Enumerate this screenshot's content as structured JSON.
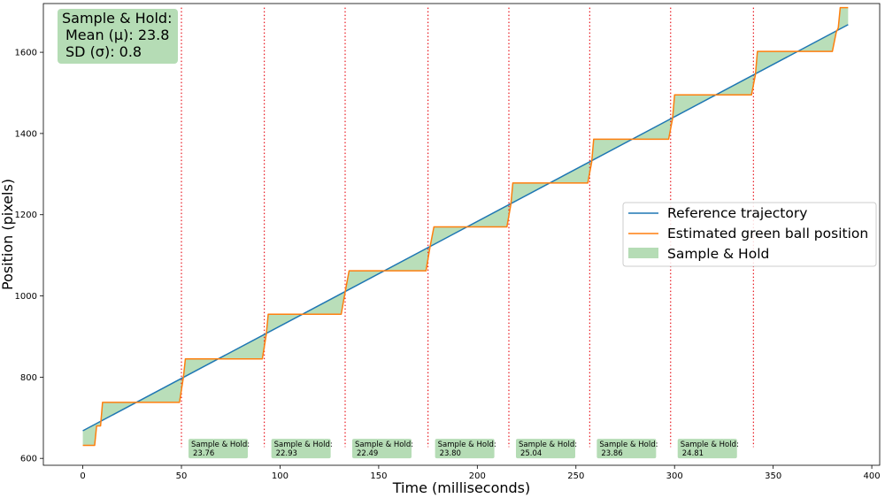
{
  "chart_data": {
    "type": "line",
    "xlabel": "Time (milliseconds)",
    "ylabel": "Position (pixels)",
    "xlim": [
      -20,
      404
    ],
    "ylim": [
      583,
      1720
    ],
    "x_ticks": [
      0,
      50,
      100,
      150,
      200,
      250,
      300,
      350,
      400
    ],
    "y_ticks": [
      600,
      800,
      1000,
      1200,
      1400,
      1600
    ],
    "grid": false,
    "legend_position": "center-right",
    "colors": {
      "reference": "#1f77b4",
      "estimated": "#ff7f0e",
      "fill": "#b5dcb5",
      "boundary": "#e8141c",
      "label_box": "#b5dcb5"
    },
    "series": [
      {
        "name": "Reference trajectory",
        "x": [
          0,
          388
        ],
        "y": [
          668,
          1668
        ]
      },
      {
        "name": "Estimated green ball position",
        "x": [
          0,
          6,
          7,
          9,
          10,
          49,
          51,
          52,
          91,
          93,
          94,
          131,
          133,
          135,
          174,
          176,
          178,
          215,
          217,
          218,
          256,
          258,
          259,
          297,
          299,
          300,
          339,
          341,
          342,
          380,
          382,
          383,
          384,
          388
        ],
        "y": [
          632,
          632,
          680,
          680,
          738,
          738,
          800,
          845,
          845,
          905,
          955,
          955,
          1010,
          1062,
          1062,
          1120,
          1170,
          1170,
          1225,
          1278,
          1278,
          1330,
          1386,
          1386,
          1437,
          1495,
          1495,
          1545,
          1602,
          1602,
          1650,
          1660,
          1710,
          1710
        ]
      },
      {
        "name": "Sample & Hold"
      }
    ],
    "segment_boundaries": [
      50,
      92,
      133,
      175,
      216,
      257,
      298,
      340
    ],
    "segment_annotations": [
      {
        "title": "Sample & Hold:",
        "value": "23.76",
        "x_start": 50
      },
      {
        "title": "Sample & Hold:",
        "value": "22.93",
        "x_start": 92
      },
      {
        "title": "Sample & Hold:",
        "value": "22.49",
        "x_start": 133
      },
      {
        "title": "Sample & Hold:",
        "value": "23.80",
        "x_start": 175
      },
      {
        "title": "Sample & Hold:",
        "value": "25.04",
        "x_start": 216
      },
      {
        "title": "Sample & Hold:",
        "value": "23.86",
        "x_start": 257
      },
      {
        "title": "Sample & Hold:",
        "value": "24.81",
        "x_start": 298
      }
    ],
    "summary_box": {
      "line1": "Sample & Hold:",
      "line2": "Mean (μ): 23.8",
      "line3": "SD (σ): 0.8"
    }
  }
}
